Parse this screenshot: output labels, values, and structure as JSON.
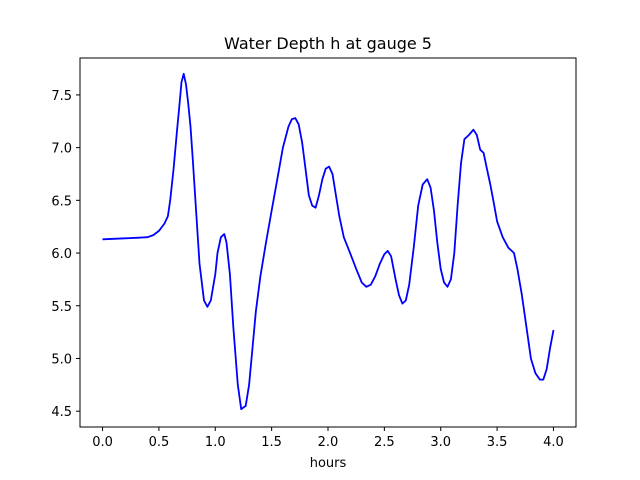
{
  "chart_data": {
    "type": "line",
    "title": "Water Depth h at gauge 5",
    "xlabel": "hours",
    "ylabel": "",
    "xlim": [
      -0.2,
      4.2
    ],
    "ylim": [
      4.35,
      7.85
    ],
    "xticks": [
      0.0,
      0.5,
      1.0,
      1.5,
      2.0,
      2.5,
      3.0,
      3.5,
      4.0
    ],
    "xtick_labels": [
      "0.0",
      "0.5",
      "1.0",
      "1.5",
      "2.0",
      "2.5",
      "3.0",
      "3.5",
      "4.0"
    ],
    "yticks": [
      4.5,
      5.0,
      5.5,
      6.0,
      6.5,
      7.0,
      7.5
    ],
    "ytick_labels": [
      "4.5",
      "5.0",
      "5.5",
      "6.0",
      "6.5",
      "7.0",
      "7.5"
    ],
    "grid": false,
    "legend": "none",
    "series": [
      {
        "color": "#0000ff",
        "x": [
          0.0,
          0.1,
          0.2,
          0.3,
          0.4,
          0.45,
          0.5,
          0.55,
          0.58,
          0.6,
          0.63,
          0.66,
          0.68,
          0.7,
          0.72,
          0.74,
          0.76,
          0.78,
          0.8,
          0.83,
          0.86,
          0.9,
          0.93,
          0.96,
          1.0,
          1.02,
          1.05,
          1.08,
          1.1,
          1.13,
          1.16,
          1.2,
          1.23,
          1.27,
          1.3,
          1.33,
          1.36,
          1.4,
          1.45,
          1.5,
          1.55,
          1.6,
          1.65,
          1.68,
          1.71,
          1.74,
          1.77,
          1.8,
          1.83,
          1.86,
          1.89,
          1.92,
          1.95,
          1.98,
          2.01,
          2.04,
          2.07,
          2.1,
          2.14,
          2.2,
          2.25,
          2.3,
          2.34,
          2.38,
          2.42,
          2.46,
          2.5,
          2.53,
          2.56,
          2.6,
          2.63,
          2.66,
          2.69,
          2.72,
          2.76,
          2.8,
          2.84,
          2.88,
          2.91,
          2.94,
          2.97,
          3.0,
          3.03,
          3.06,
          3.09,
          3.12,
          3.15,
          3.18,
          3.21,
          3.25,
          3.29,
          3.32,
          3.35,
          3.38,
          3.41,
          3.44,
          3.47,
          3.5,
          3.55,
          3.6,
          3.65,
          3.68,
          3.72,
          3.76,
          3.8,
          3.84,
          3.88,
          3.91,
          3.94,
          3.97,
          4.0
        ],
        "y": [
          6.13,
          6.135,
          6.14,
          6.145,
          6.15,
          6.17,
          6.21,
          6.28,
          6.35,
          6.5,
          6.8,
          7.15,
          7.38,
          7.62,
          7.7,
          7.6,
          7.42,
          7.2,
          6.9,
          6.4,
          5.9,
          5.55,
          5.49,
          5.55,
          5.8,
          6.0,
          6.15,
          6.18,
          6.1,
          5.8,
          5.3,
          4.75,
          4.52,
          4.55,
          4.75,
          5.1,
          5.45,
          5.78,
          6.1,
          6.4,
          6.7,
          7.0,
          7.2,
          7.27,
          7.28,
          7.22,
          7.05,
          6.8,
          6.55,
          6.45,
          6.43,
          6.55,
          6.7,
          6.8,
          6.82,
          6.75,
          6.55,
          6.35,
          6.15,
          5.99,
          5.85,
          5.72,
          5.68,
          5.7,
          5.78,
          5.9,
          5.99,
          6.02,
          5.97,
          5.75,
          5.6,
          5.52,
          5.55,
          5.7,
          6.05,
          6.45,
          6.65,
          6.7,
          6.62,
          6.4,
          6.1,
          5.85,
          5.72,
          5.68,
          5.75,
          6.0,
          6.45,
          6.85,
          7.08,
          7.12,
          7.17,
          7.12,
          6.98,
          6.95,
          6.8,
          6.65,
          6.48,
          6.3,
          6.15,
          6.05,
          6.0,
          5.85,
          5.6,
          5.3,
          5.0,
          4.86,
          4.8,
          4.8,
          4.9,
          5.1,
          5.27
        ]
      }
    ]
  }
}
